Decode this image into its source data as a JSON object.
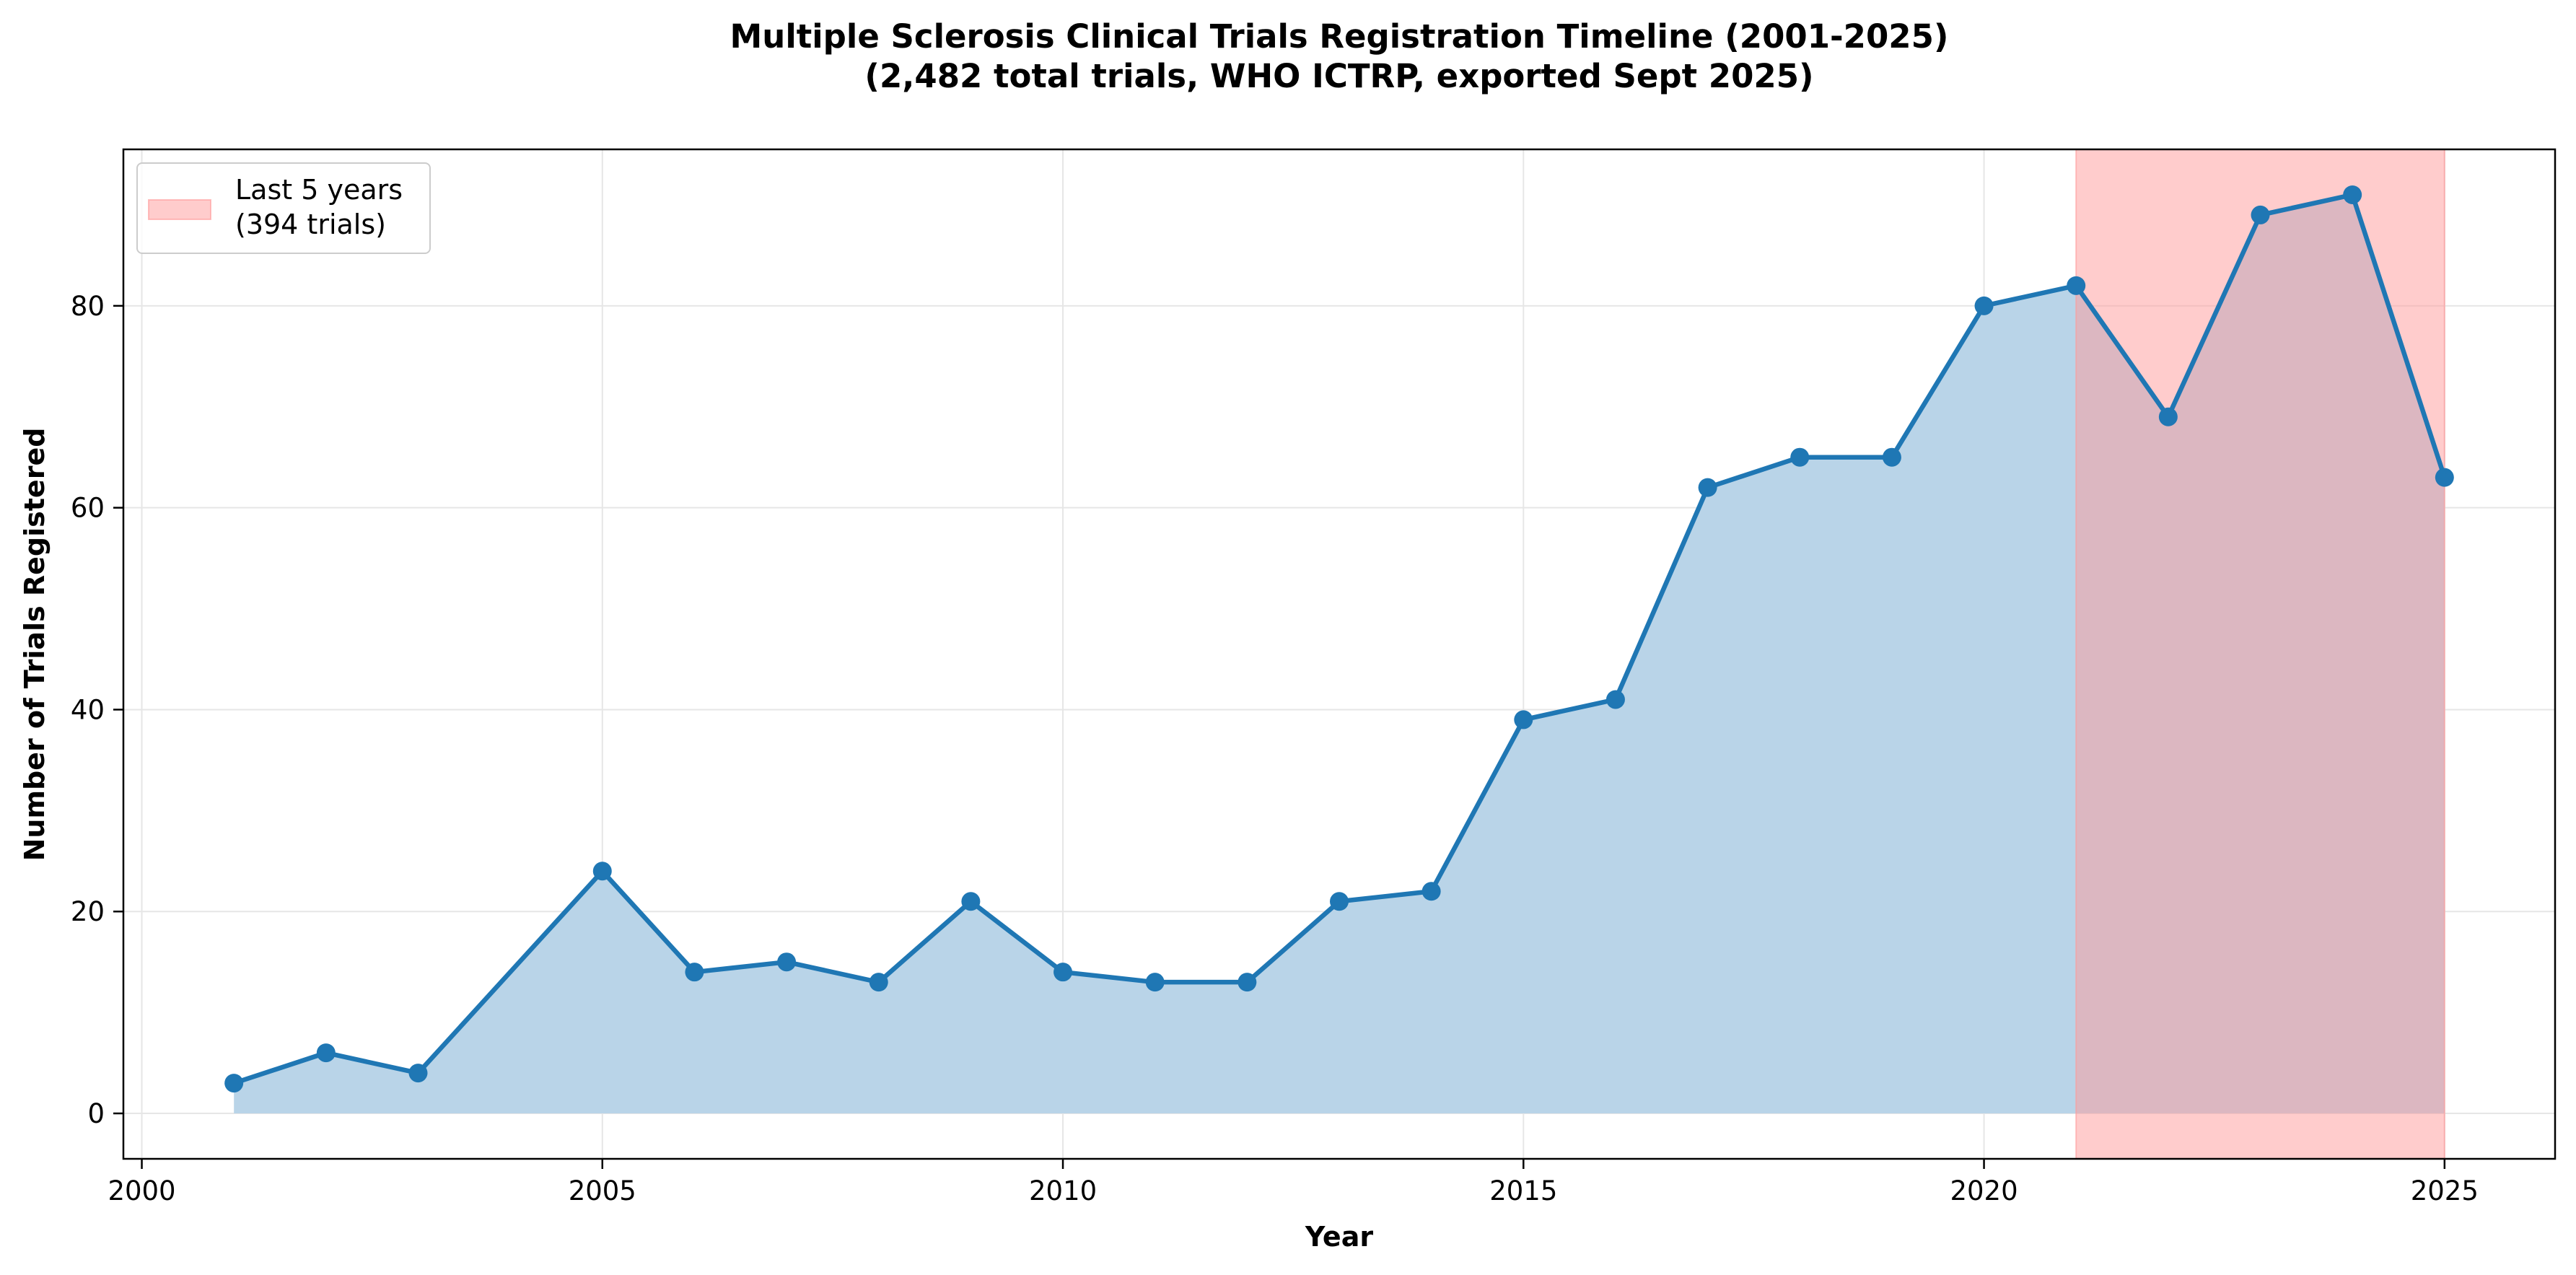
{
  "chart_data": {
    "type": "area",
    "title": "Multiple Sclerosis Clinical Trials Registration Timeline (2001-2025)",
    "subtitle": "(2,482 total trials, WHO ICTRP, exported Sept 2025)",
    "xlabel": "Year",
    "ylabel": "Number of Trials Registered",
    "xlim": [
      1999.8,
      2026.2
    ],
    "ylim": [
      -4.5,
      95.5
    ],
    "x_ticks": [
      2000,
      2005,
      2010,
      2015,
      2020,
      2025
    ],
    "y_ticks": [
      0,
      20,
      40,
      60,
      80
    ],
    "grid": true,
    "x": [
      2001,
      2002,
      2003,
      2005,
      2006,
      2007,
      2008,
      2009,
      2010,
      2011,
      2012,
      2013,
      2014,
      2015,
      2016,
      2017,
      2018,
      2019,
      2020,
      2021,
      2022,
      2023,
      2024,
      2025
    ],
    "values": [
      3,
      6,
      4,
      24,
      14,
      15,
      13,
      21,
      14,
      13,
      13,
      21,
      22,
      39,
      41,
      62,
      65,
      65,
      80,
      82,
      69,
      89,
      91,
      63
    ],
    "highlight": {
      "x_range": [
        2021,
        2025
      ],
      "label_line1": "Last 5 years",
      "label_line2": "(394 trials)"
    },
    "legend_position": "top-left",
    "colors": {
      "line": "#1f77b4",
      "area": "#b9d4e8",
      "highlight": "#ff9999",
      "grid": "#e6e6e6"
    }
  }
}
